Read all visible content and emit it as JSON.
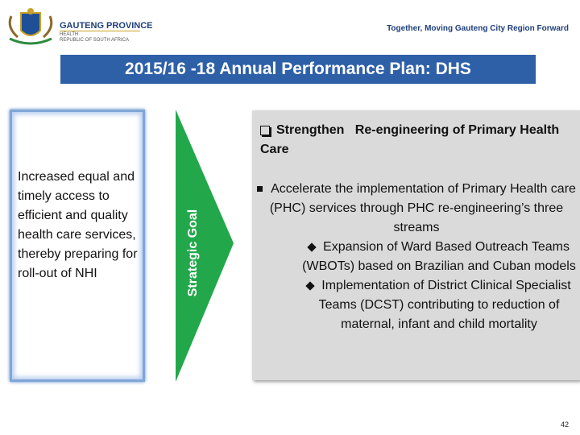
{
  "header": {
    "province": "GAUTENG PROVINCE",
    "department": "HEALTH",
    "country": "REPUBLIC OF SOUTH AFRICA",
    "tagline": "Together, Moving Gauteng City Region Forward"
  },
  "title": "2015/16 -18 Annual Performance Plan: DHS",
  "goal_box": {
    "text": "Increased equal and timely access to efficient and quality health care services, thereby preparing for roll-out of NHI"
  },
  "arrow_label": "Strategic Goal",
  "focus": {
    "heading": "Strengthen   Re-engineering of Primary Health Care",
    "bullets": [
      {
        "text": "Accelerate the implementation of Primary Health care (PHC) services through PHC re-engineering’s three streams",
        "sub": [
          "Expansion of Ward Based Outreach Teams (WBOTs) based on Brazilian and Cuban models",
          "Implementation of District Clinical Specialist Teams (DCST) contributing to reduction of maternal, infant and child mortality"
        ]
      }
    ]
  },
  "page_number": "42"
}
